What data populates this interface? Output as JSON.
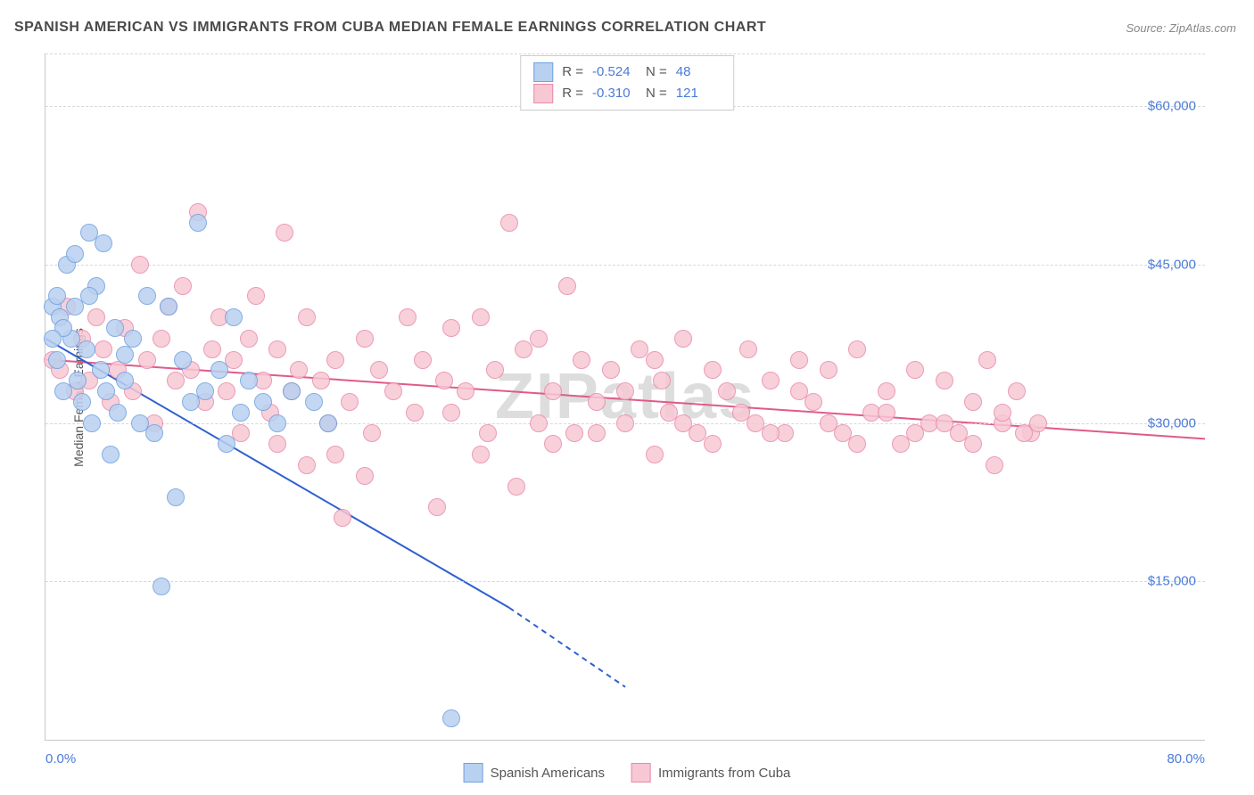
{
  "title": "SPANISH AMERICAN VS IMMIGRANTS FROM CUBA MEDIAN FEMALE EARNINGS CORRELATION CHART",
  "source_label": "Source: ZipAtlas.com",
  "ylabel": "Median Female Earnings",
  "watermark": "ZIPatlas",
  "chart": {
    "type": "scatter",
    "background_color": "#ffffff",
    "grid_color": "#d8d8d8",
    "axis_color": "#c8c8c8",
    "tick_color": "#4a7bd8",
    "title_color": "#4a4a4a",
    "title_fontsize": 16,
    "label_fontsize": 14,
    "tick_fontsize": 15,
    "xlim": [
      0,
      80
    ],
    "ylim": [
      0,
      65000
    ],
    "y_gridlines": [
      15000,
      30000,
      45000,
      60000
    ],
    "y_tick_labels": [
      "$15,000",
      "$30,000",
      "$45,000",
      "$60,000"
    ],
    "x_tick_values": [
      0,
      80
    ],
    "x_tick_labels": [
      "0.0%",
      "80.0%"
    ],
    "marker_radius": 9,
    "marker_stroke_width": 1,
    "marker_fill_opacity": 0.35
  },
  "series": [
    {
      "name": "Spanish Americans",
      "R": "-0.524",
      "N": "48",
      "marker_fill": "#b9d1f0",
      "marker_stroke": "#6fa0e0",
      "line_color": "#2f5fd0",
      "trend": {
        "x1": 0,
        "y1": 38000,
        "x2": 32,
        "y2": 12500,
        "x2_dash": 40,
        "y2_dash": 5000
      },
      "points": [
        [
          0.5,
          41000
        ],
        [
          0.8,
          36000
        ],
        [
          1.0,
          40000
        ],
        [
          1.2,
          33000
        ],
        [
          1.5,
          45000
        ],
        [
          1.8,
          38000
        ],
        [
          2.0,
          41000
        ],
        [
          2.2,
          34000
        ],
        [
          2.5,
          32000
        ],
        [
          2.8,
          37000
        ],
        [
          3.0,
          48000
        ],
        [
          3.2,
          30000
        ],
        [
          3.5,
          43000
        ],
        [
          3.8,
          35000
        ],
        [
          4.0,
          47000
        ],
        [
          4.2,
          33000
        ],
        [
          4.5,
          27000
        ],
        [
          5.0,
          31000
        ],
        [
          5.5,
          34000
        ],
        [
          6.0,
          38000
        ],
        [
          6.5,
          30000
        ],
        [
          7.0,
          42000
        ],
        [
          7.5,
          29000
        ],
        [
          8.0,
          14500
        ],
        [
          8.5,
          41000
        ],
        [
          9.0,
          23000
        ],
        [
          9.5,
          36000
        ],
        [
          10.0,
          32000
        ],
        [
          10.5,
          49000
        ],
        [
          11.0,
          33000
        ],
        [
          12.0,
          35000
        ],
        [
          12.5,
          28000
        ],
        [
          13.0,
          40000
        ],
        [
          13.5,
          31000
        ],
        [
          14.0,
          34000
        ],
        [
          15.0,
          32000
        ],
        [
          16.0,
          30000
        ],
        [
          17.0,
          33000
        ],
        [
          18.5,
          32000
        ],
        [
          19.5,
          30000
        ],
        [
          4.8,
          39000
        ],
        [
          3.0,
          42000
        ],
        [
          2.0,
          46000
        ],
        [
          1.2,
          39000
        ],
        [
          0.8,
          42000
        ],
        [
          0.5,
          38000
        ],
        [
          28.0,
          2000
        ],
        [
          5.5,
          36500
        ]
      ]
    },
    {
      "name": "Immigrants from Cuba",
      "R": "-0.310",
      "N": "121",
      "marker_fill": "#f7c8d4",
      "marker_stroke": "#e88aab",
      "line_color": "#e05a8a",
      "trend": {
        "x1": 0,
        "y1": 36000,
        "x2": 80,
        "y2": 28500
      },
      "points": [
        [
          0.5,
          36000
        ],
        [
          1.0,
          35000
        ],
        [
          1.5,
          41000
        ],
        [
          2.0,
          33000
        ],
        [
          2.5,
          38000
        ],
        [
          3.0,
          34000
        ],
        [
          3.5,
          40000
        ],
        [
          4.0,
          37000
        ],
        [
          4.5,
          32000
        ],
        [
          5.0,
          35000
        ],
        [
          5.5,
          39000
        ],
        [
          6.0,
          33000
        ],
        [
          6.5,
          45000
        ],
        [
          7.0,
          36000
        ],
        [
          7.5,
          30000
        ],
        [
          8.0,
          38000
        ],
        [
          8.5,
          41000
        ],
        [
          9.0,
          34000
        ],
        [
          9.5,
          43000
        ],
        [
          10.0,
          35000
        ],
        [
          10.5,
          50000
        ],
        [
          11.0,
          32000
        ],
        [
          11.5,
          37000
        ],
        [
          12.0,
          40000
        ],
        [
          12.5,
          33000
        ],
        [
          13.0,
          36000
        ],
        [
          13.5,
          29000
        ],
        [
          14.0,
          38000
        ],
        [
          14.5,
          42000
        ],
        [
          15.0,
          34000
        ],
        [
          15.5,
          31000
        ],
        [
          16.0,
          37000
        ],
        [
          16.5,
          48000
        ],
        [
          17.0,
          33000
        ],
        [
          17.5,
          35000
        ],
        [
          18.0,
          40000
        ],
        [
          19.0,
          34000
        ],
        [
          19.5,
          30000
        ],
        [
          20.0,
          36000
        ],
        [
          20.5,
          21000
        ],
        [
          21.0,
          32000
        ],
        [
          22.0,
          38000
        ],
        [
          22.5,
          29000
        ],
        [
          23.0,
          35000
        ],
        [
          24.0,
          33000
        ],
        [
          25.0,
          40000
        ],
        [
          25.5,
          31000
        ],
        [
          26.0,
          36000
        ],
        [
          27.0,
          22000
        ],
        [
          27.5,
          34000
        ],
        [
          28.0,
          39000
        ],
        [
          29.0,
          33000
        ],
        [
          30.0,
          40000
        ],
        [
          30.5,
          29000
        ],
        [
          31.0,
          35000
        ],
        [
          32.0,
          49000
        ],
        [
          32.5,
          24000
        ],
        [
          33.0,
          37000
        ],
        [
          34.0,
          30000
        ],
        [
          35.0,
          33000
        ],
        [
          36.0,
          43000
        ],
        [
          36.5,
          29000
        ],
        [
          37.0,
          36000
        ],
        [
          38.0,
          32000
        ],
        [
          39.0,
          35000
        ],
        [
          40.0,
          30000
        ],
        [
          41.0,
          37000
        ],
        [
          42.0,
          27000
        ],
        [
          42.5,
          34000
        ],
        [
          43.0,
          31000
        ],
        [
          44.0,
          38000
        ],
        [
          45.0,
          29000
        ],
        [
          46.0,
          35000
        ],
        [
          47.0,
          33000
        ],
        [
          48.5,
          37000
        ],
        [
          49.0,
          30000
        ],
        [
          50.0,
          34000
        ],
        [
          51.0,
          29000
        ],
        [
          52.0,
          36000
        ],
        [
          53.0,
          32000
        ],
        [
          54.0,
          35000
        ],
        [
          55.0,
          29000
        ],
        [
          56.0,
          37000
        ],
        [
          57.0,
          31000
        ],
        [
          58.0,
          33000
        ],
        [
          59.0,
          28000
        ],
        [
          60.0,
          35000
        ],
        [
          61.0,
          30000
        ],
        [
          62.0,
          34000
        ],
        [
          63.0,
          29000
        ],
        [
          64.0,
          32000
        ],
        [
          65.0,
          36000
        ],
        [
          65.5,
          26000
        ],
        [
          66.0,
          30000
        ],
        [
          67.0,
          33000
        ],
        [
          68.0,
          29000
        ],
        [
          16.0,
          28000
        ],
        [
          18.0,
          26000
        ],
        [
          20.0,
          27000
        ],
        [
          22.0,
          25000
        ],
        [
          35.0,
          28000
        ],
        [
          28.0,
          31000
        ],
        [
          30.0,
          27000
        ],
        [
          34.0,
          38000
        ],
        [
          38.0,
          29000
        ],
        [
          40.0,
          33000
        ],
        [
          42.0,
          36000
        ],
        [
          44.0,
          30000
        ],
        [
          46.0,
          28000
        ],
        [
          48.0,
          31000
        ],
        [
          50.0,
          29000
        ],
        [
          52.0,
          33000
        ],
        [
          54.0,
          30000
        ],
        [
          56.0,
          28000
        ],
        [
          58.0,
          31000
        ],
        [
          60.0,
          29000
        ],
        [
          62.0,
          30000
        ],
        [
          64.0,
          28000
        ],
        [
          66.0,
          31000
        ],
        [
          67.5,
          29000
        ],
        [
          68.5,
          30000
        ]
      ]
    }
  ],
  "legend_series_label_1": "Spanish Americans",
  "legend_series_label_2": "Immigrants from Cuba",
  "rn_labels": {
    "r": "R =",
    "n": "N ="
  }
}
